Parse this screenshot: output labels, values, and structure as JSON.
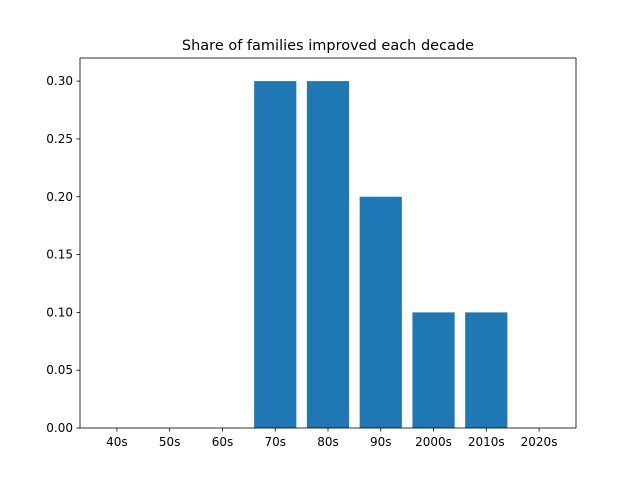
{
  "chart_data": {
    "type": "bar",
    "title": "Share of families improved each decade",
    "xlabel": "",
    "ylabel": "",
    "categories": [
      "40s",
      "50s",
      "60s",
      "70s",
      "80s",
      "90s",
      "2000s",
      "2010s",
      "2020s"
    ],
    "values": [
      0.0,
      0.0,
      0.0,
      0.3,
      0.3,
      0.2,
      0.1,
      0.1,
      0.0
    ],
    "ylim": [
      0,
      0.32
    ],
    "yticks": [
      "0.00",
      "0.05",
      "0.10",
      "0.15",
      "0.20",
      "0.25",
      "0.30"
    ],
    "bar_color": "#1f77b4",
    "grid": false,
    "legend": "none"
  }
}
